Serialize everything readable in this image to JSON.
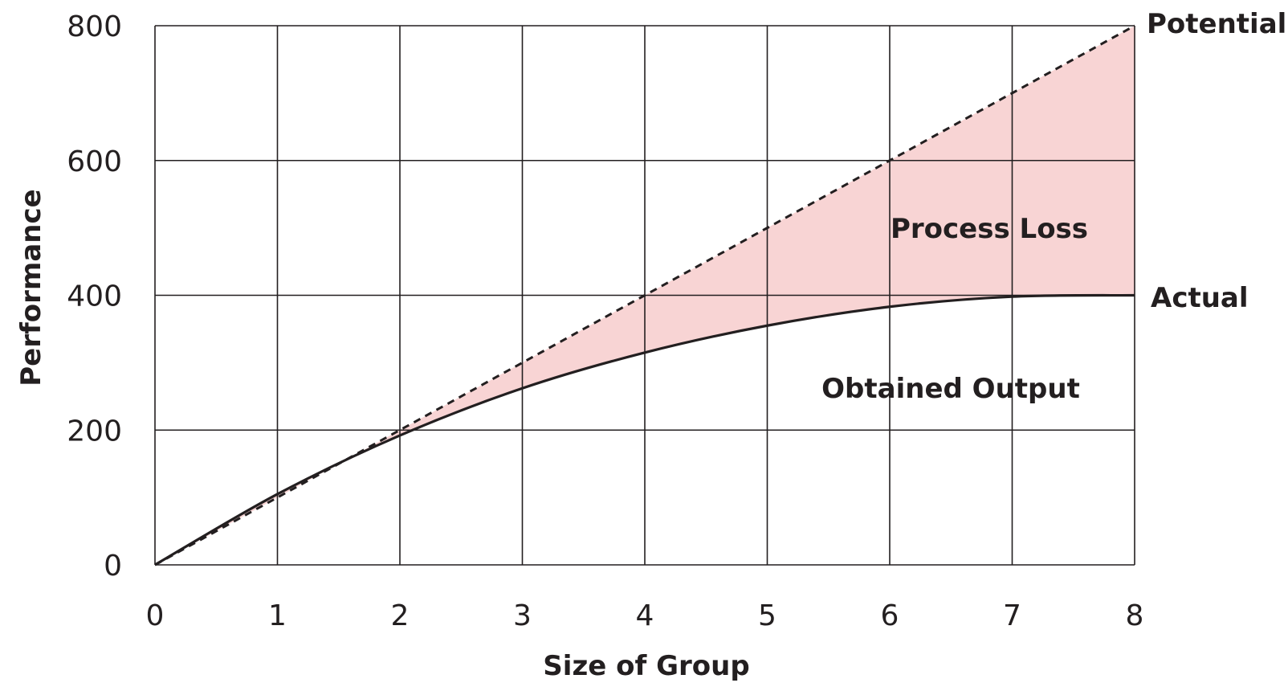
{
  "chart_data": {
    "type": "line",
    "title": "",
    "xlabel": "Size of Group",
    "ylabel": "Performance",
    "xlim": [
      0,
      8
    ],
    "ylim": [
      0,
      800
    ],
    "x_ticks": [
      0,
      1,
      2,
      3,
      4,
      5,
      6,
      7,
      8
    ],
    "y_ticks": [
      0,
      200,
      400,
      600,
      800
    ],
    "grid": true,
    "series": [
      {
        "name": "Potential",
        "style": "dashed",
        "color": "#231f20",
        "x": [
          0,
          1,
          2,
          3,
          4,
          5,
          6,
          7,
          8
        ],
        "values": [
          0,
          100,
          200,
          300,
          400,
          500,
          600,
          700,
          800
        ]
      },
      {
        "name": "Actual",
        "style": "solid",
        "color": "#231f20",
        "x": [
          0,
          1,
          2,
          3,
          4,
          5,
          6,
          7,
          8
        ],
        "values": [
          0,
          105,
          192,
          262,
          315,
          355,
          383,
          398,
          400
        ]
      }
    ],
    "fill_between": {
      "label": "Process Loss",
      "color": "#f8d4d4"
    },
    "annotations": [
      "Process Loss",
      "Obtained Output"
    ]
  }
}
